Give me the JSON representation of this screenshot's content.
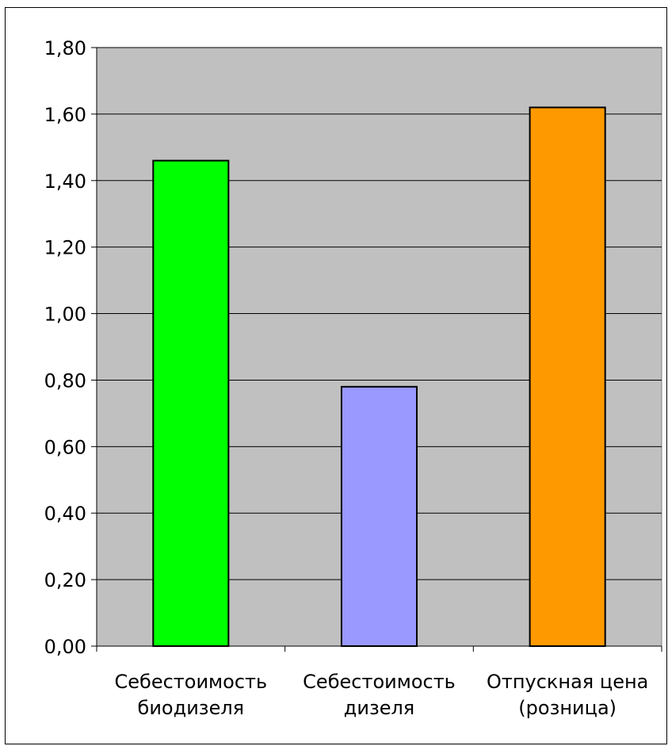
{
  "chart_data": {
    "type": "bar",
    "categories": [
      [
        "Себестоимость",
        "биодизеля"
      ],
      [
        "Себестоимость",
        "дизеля"
      ],
      [
        "Отпускная цена",
        "(розница)"
      ]
    ],
    "values": [
      1.46,
      0.78,
      1.62
    ],
    "bar_colors": [
      "#00ff00",
      "#9999ff",
      "#ff9900"
    ],
    "plot_background": "#c0c0c0",
    "ylim": [
      0,
      1.8
    ],
    "yticks": [
      0,
      0.2,
      0.4,
      0.6,
      0.8,
      1.0,
      1.2,
      1.4,
      1.6,
      1.8
    ],
    "ytick_labels": [
      "0,00",
      "0,20",
      "0,40",
      "0,60",
      "0,80",
      "1,00",
      "1,20",
      "1,40",
      "1,60",
      "1,80"
    ],
    "grid": true,
    "legend": false
  }
}
